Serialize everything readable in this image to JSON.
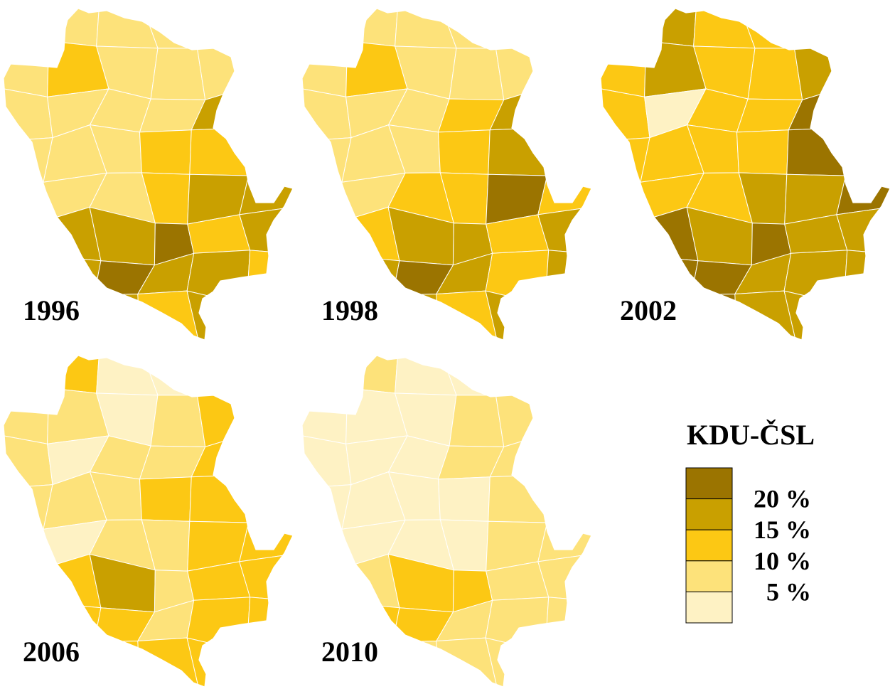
{
  "legend": {
    "title": "KDU-ČSL",
    "classes": [
      {
        "label": "20 %",
        "color": "#9b7400"
      },
      {
        "label": "15 %",
        "color": "#c9a000"
      },
      {
        "label": "10 %",
        "color": "#fcc814"
      },
      {
        "label": "5 %",
        "color": "#fde27a"
      },
      {
        "label": "",
        "color": "#fef2c4"
      }
    ]
  },
  "maps": [
    {
      "year": "1996",
      "cells": [
        "4",
        "3",
        "3",
        "3",
        "3",
        "3",
        "3",
        "2",
        "3",
        "3",
        "3",
        "2",
        "3",
        "3",
        "3",
        "3",
        "1",
        "2",
        "3",
        "3",
        "3",
        "2",
        "2",
        "3",
        "3",
        "3",
        "3",
        "2",
        "1",
        "1",
        "2",
        "1",
        "1",
        "0",
        "2",
        "1",
        "1",
        "1",
        "0",
        "1",
        "1",
        "2",
        "2",
        "1",
        "1",
        "2",
        "1",
        "2"
      ]
    },
    {
      "year": "1998",
      "cells": [
        "4",
        "3",
        "3",
        "3",
        "3",
        "3",
        "3",
        "2",
        "3",
        "3",
        "3",
        "2",
        "3",
        "3",
        "3",
        "2",
        "1",
        "2",
        "3",
        "3",
        "3",
        "2",
        "1",
        "2",
        "3",
        "3",
        "2",
        "2",
        "0",
        "2",
        "2",
        "2",
        "1",
        "1",
        "2",
        "1",
        "2",
        "1",
        "0",
        "1",
        "2",
        "1",
        "2",
        "1",
        "1",
        "2",
        "1",
        "2"
      ]
    },
    {
      "year": "2002",
      "cells": [
        "2",
        "1",
        "2",
        "2",
        "2",
        "2",
        "2",
        "1",
        "2",
        "2",
        "1",
        "1",
        "2",
        "4",
        "2",
        "2",
        "0",
        "1",
        "2",
        "2",
        "2",
        "2",
        "0",
        "1",
        "2",
        "2",
        "2",
        "1",
        "1",
        "0",
        "1",
        "0",
        "1",
        "0",
        "1",
        "1",
        "0",
        "0",
        "0",
        "1",
        "1",
        "1",
        "1",
        "0",
        "0",
        "1",
        "1",
        "1"
      ]
    },
    {
      "year": "2006",
      "cells": [
        "4",
        "2",
        "4",
        "4",
        "3",
        "3",
        "3",
        "3",
        "4",
        "3",
        "2",
        "3",
        "3",
        "4",
        "3",
        "3",
        "2",
        "2",
        "3",
        "3",
        "3",
        "2",
        "2",
        "3",
        "4",
        "4",
        "3",
        "3",
        "2",
        "2",
        "3",
        "2",
        "1",
        "3",
        "2",
        "2",
        "2",
        "2",
        "2",
        "3",
        "2",
        "2",
        "2",
        "2",
        "2",
        "2",
        "2",
        "2"
      ]
    },
    {
      "year": "2010",
      "cells": [
        "4",
        "3",
        "4",
        "4",
        "3",
        "3",
        "4",
        "4",
        "4",
        "3",
        "3",
        "3",
        "4",
        "4",
        "4",
        "3",
        "3",
        "3",
        "4",
        "4",
        "4",
        "4",
        "3",
        "3",
        "4",
        "4",
        "4",
        "4",
        "3",
        "3",
        "3",
        "3",
        "2",
        "2",
        "3",
        "3",
        "3",
        "2",
        "2",
        "3",
        "3",
        "3",
        "3",
        "2",
        "3",
        "3",
        "3",
        "3"
      ]
    }
  ]
}
